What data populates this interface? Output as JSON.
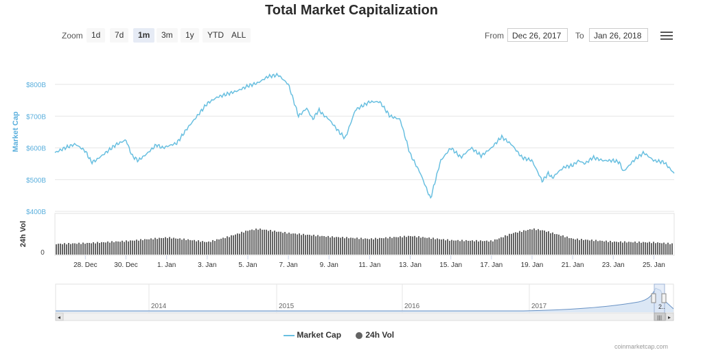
{
  "chart_data": {
    "type": "line",
    "title": "Total Market Capitalization",
    "ylabel": "Market Cap",
    "volume_label": "24h Vol",
    "y_ticks": [
      "$400B",
      "$500B",
      "$600B",
      "$700B",
      "$800B"
    ],
    "y_tick_values": [
      400,
      500,
      600,
      700,
      800
    ],
    "vol_tick": "0",
    "ylim": [
      400,
      840
    ],
    "x_ticks": [
      "28. Dec",
      "30. Dec",
      "1. Jan",
      "3. Jan",
      "5. Jan",
      "7. Jan",
      "9. Jan",
      "11. Jan",
      "13. Jan",
      "15. Jan",
      "17. Jan",
      "19. Jan",
      "21. Jan",
      "23. Jan",
      "25. Jan"
    ],
    "x_tick_days": [
      1.0,
      3.0,
      5.0,
      7.0,
      9.0,
      11.0,
      13.0,
      15.0,
      17.0,
      19.0,
      21.0,
      23.0,
      25.0,
      27.0,
      29.0
    ],
    "series": [
      {
        "name": "Market Cap",
        "unit": "billion USD",
        "x": [
          -0.5,
          0.0,
          0.5,
          1.0,
          1.3,
          1.5,
          2.0,
          2.5,
          3.0,
          3.3,
          3.6,
          4.0,
          4.5,
          4.8,
          5.5,
          6.0,
          6.5,
          7.0,
          7.5,
          8.0,
          8.5,
          9.0,
          9.5,
          10.0,
          10.5,
          11.0,
          11.5,
          11.9,
          12.2,
          12.5,
          12.7,
          13.0,
          13.5,
          13.8,
          14.3,
          15.0,
          15.5,
          16.0,
          16.5,
          17.0,
          17.5,
          18.0,
          18.5,
          19.0,
          19.5,
          20.0,
          20.5,
          21.0,
          21.5,
          22.0,
          22.5,
          23.0,
          23.5,
          23.8,
          24.0,
          24.3,
          24.6,
          25.0,
          25.3,
          25.6,
          26.0,
          26.5,
          27.0,
          27.3,
          27.5,
          28.0,
          28.5,
          29.0,
          29.5,
          30.0
        ],
        "values": [
          585,
          600,
          612,
          590,
          555,
          560,
          585,
          610,
          625,
          575,
          560,
          580,
          610,
          600,
          615,
          660,
          700,
          740,
          760,
          770,
          780,
          795,
          805,
          825,
          830,
          800,
          700,
          725,
          690,
          720,
          705,
          690,
          650,
          630,
          720,
          745,
          745,
          700,
          690,
          580,
          520,
          440,
          560,
          600,
          570,
          600,
          575,
          600,
          635,
          610,
          570,
          560,
          495,
          520,
          505,
          525,
          540,
          545,
          560,
          550,
          570,
          560,
          560,
          555,
          525,
          560,
          585,
          560,
          555,
          520
        ]
      },
      {
        "name": "24h Vol",
        "unit": "relative",
        "x": [
          -0.5,
          1.0,
          3.0,
          5.0,
          6.0,
          7.0,
          8.0,
          9.0,
          9.5,
          11.0,
          13.0,
          15.0,
          17.0,
          19.0,
          21.0,
          22.0,
          23.0,
          23.5,
          25.0,
          27.0,
          29.0,
          30.0
        ],
        "values": [
          0.3,
          0.32,
          0.38,
          0.48,
          0.42,
          0.35,
          0.5,
          0.68,
          0.72,
          0.6,
          0.5,
          0.44,
          0.52,
          0.4,
          0.38,
          0.6,
          0.72,
          0.68,
          0.44,
          0.36,
          0.34,
          0.3
        ]
      }
    ]
  },
  "toolbar": {
    "zoom_label": "Zoom",
    "zoom_buttons": [
      "1d",
      "7d",
      "1m",
      "3m",
      "1y",
      "YTD",
      "ALL"
    ],
    "range_from_label": "From",
    "range_from": "Dec 26, 2017",
    "range_to_label": "To",
    "range_to": "Jan 26, 2018"
  },
  "navigator": {
    "years": [
      "2014",
      "2015",
      "2016",
      "2017"
    ],
    "handle_label": "2..",
    "left_arrow": "◂",
    "right_arrow": "▸",
    "grip": "|||"
  },
  "legend": {
    "market_cap": "Market Cap",
    "volume": "24h Vol"
  },
  "credits": "coinmarketcap.com",
  "colors": {
    "line": "#68bfe0",
    "volume": "#636363",
    "axis_label": "#5aafdd",
    "grid": "#e6e6e6",
    "navigator_fill": "#dbe7f5",
    "navigator_line": "#6791c4",
    "active_zoom": "#e6ebf5"
  }
}
